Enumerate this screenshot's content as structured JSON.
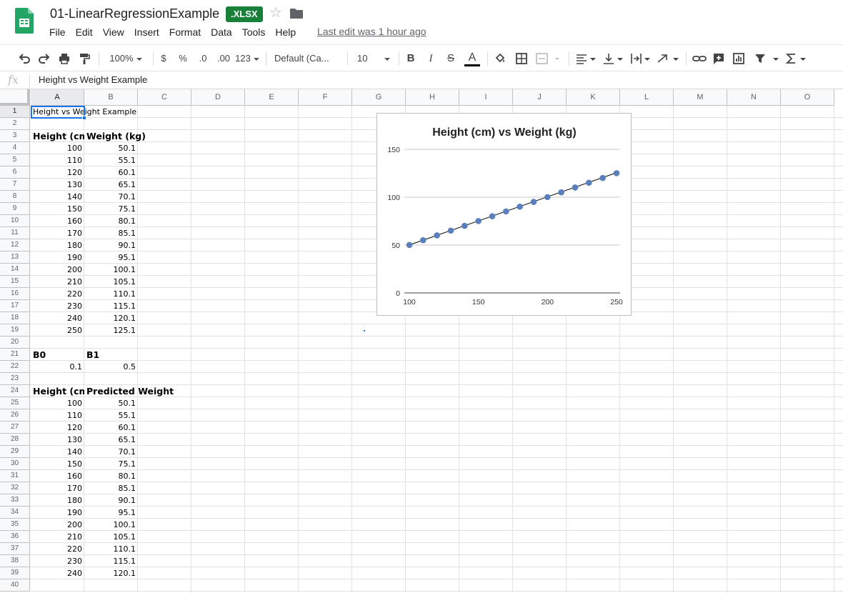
{
  "document": {
    "title": "01-LinearRegressionExample",
    "format_badge": ".XLSX",
    "last_edit": "Last edit was 1 hour ago"
  },
  "menu": [
    "File",
    "Edit",
    "View",
    "Insert",
    "Format",
    "Data",
    "Tools",
    "Help"
  ],
  "toolbar": {
    "zoom": "100%",
    "currency": "$",
    "percent": "%",
    "decrease_decimals": ".0",
    "increase_decimals": ".00",
    "more_formats": "123",
    "font": "Default (Ca...",
    "font_size": "10",
    "bold": "B",
    "italic": "I",
    "strikethrough": "S",
    "text_color": "A",
    "text_color_underline": "#000000"
  },
  "formula_bar": {
    "fx": "fx",
    "content": "Height vs Weight Example"
  },
  "active_cell": "A1",
  "columns": [
    "A",
    "B",
    "C",
    "D",
    "E",
    "F",
    "G",
    "H",
    "I",
    "J",
    "K",
    "L",
    "M",
    "N",
    "O"
  ],
  "rows": [
    "1",
    "2",
    "3",
    "4",
    "5",
    "6",
    "7",
    "8",
    "9",
    "10",
    "11",
    "12",
    "13",
    "14",
    "15",
    "16",
    "17",
    "18",
    "19",
    "20",
    "21",
    "22",
    "23",
    "24",
    "25",
    "26",
    "27",
    "28",
    "29",
    "30",
    "31",
    "32",
    "33",
    "34",
    "35",
    "36",
    "37",
    "38",
    "39",
    "40"
  ],
  "sheet": {
    "a1": "Height vs Weight Example",
    "header1": {
      "a": "Height (cm)",
      "b": "Weight (kg)"
    },
    "table1": [
      [
        "100",
        "50.1"
      ],
      [
        "110",
        "55.1"
      ],
      [
        "120",
        "60.1"
      ],
      [
        "130",
        "65.1"
      ],
      [
        "140",
        "70.1"
      ],
      [
        "150",
        "75.1"
      ],
      [
        "160",
        "80.1"
      ],
      [
        "170",
        "85.1"
      ],
      [
        "180",
        "90.1"
      ],
      [
        "190",
        "95.1"
      ],
      [
        "200",
        "100.1"
      ],
      [
        "210",
        "105.1"
      ],
      [
        "220",
        "110.1"
      ],
      [
        "230",
        "115.1"
      ],
      [
        "240",
        "120.1"
      ],
      [
        "250",
        "125.1"
      ]
    ],
    "coef_labels": {
      "a": "B0",
      "b": "B1"
    },
    "coef_values": {
      "a": "0.1",
      "b": "0.5"
    },
    "header2": {
      "a": "Height (cm)",
      "b": "Predicted Weight"
    },
    "table2": [
      [
        "100",
        "50.1"
      ],
      [
        "110",
        "55.1"
      ],
      [
        "120",
        "60.1"
      ],
      [
        "130",
        "65.1"
      ],
      [
        "140",
        "70.1"
      ],
      [
        "150",
        "75.1"
      ],
      [
        "160",
        "80.1"
      ],
      [
        "170",
        "85.1"
      ],
      [
        "180",
        "90.1"
      ],
      [
        "190",
        "95.1"
      ],
      [
        "200",
        "100.1"
      ],
      [
        "210",
        "105.1"
      ],
      [
        "220",
        "110.1"
      ],
      [
        "230",
        "115.1"
      ],
      [
        "240",
        "120.1"
      ]
    ]
  },
  "chart_data": {
    "type": "scatter",
    "title": "Height (cm) vs Weight (kg)",
    "xlim": [
      100,
      250
    ],
    "ylim": [
      0,
      150
    ],
    "xticks": [
      "100",
      "150",
      "200",
      "250"
    ],
    "yticks": [
      "0",
      "50",
      "100",
      "150"
    ],
    "grid": true,
    "legend": "none",
    "point_color": "#5b7fbd",
    "line_color": "#000000",
    "points": [
      [
        100,
        50.1
      ],
      [
        110,
        55.1
      ],
      [
        120,
        60.1
      ],
      [
        130,
        65.1
      ],
      [
        140,
        70.1
      ],
      [
        150,
        75.1
      ],
      [
        160,
        80.1
      ],
      [
        170,
        85.1
      ],
      [
        180,
        90.1
      ],
      [
        190,
        95.1
      ],
      [
        200,
        100.1
      ],
      [
        210,
        105.1
      ],
      [
        220,
        110.1
      ],
      [
        230,
        115.1
      ],
      [
        240,
        120.1
      ],
      [
        250,
        125.1
      ]
    ],
    "trendline": [
      [
        100,
        50.1
      ],
      [
        250,
        125.1
      ]
    ]
  }
}
